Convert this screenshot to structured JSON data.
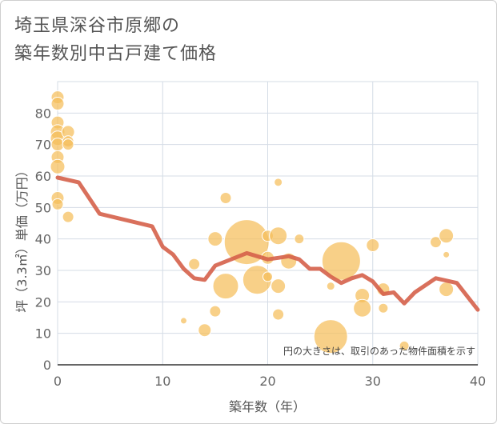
{
  "chart_data": {
    "type": "scatter",
    "title_lines": [
      "埼玉県深谷市原郷の",
      "築年数別中古戸建て価格"
    ],
    "xlabel": "築年数（年）",
    "ylabel": "坪（3.3㎡）単価（万円）",
    "xlim": [
      0,
      40
    ],
    "ylim": [
      0,
      90
    ],
    "x_ticks": [
      0,
      10,
      20,
      30,
      40
    ],
    "y_ticks": [
      0,
      10,
      20,
      30,
      40,
      50,
      60,
      70,
      80
    ],
    "note": "円の大きさは、取引のあった物件面積を示す",
    "bubble_color": "#f5be5a",
    "line_color": "#d5604a",
    "grid": true,
    "bubbles": [
      {
        "x": 0,
        "y": 85,
        "r": 8
      },
      {
        "x": 0,
        "y": 83,
        "r": 8
      },
      {
        "x": 0,
        "y": 77,
        "r": 8
      },
      {
        "x": 0,
        "y": 74,
        "r": 9
      },
      {
        "x": 0,
        "y": 72,
        "r": 9
      },
      {
        "x": 0,
        "y": 70,
        "r": 8
      },
      {
        "x": 0,
        "y": 66,
        "r": 8
      },
      {
        "x": 0,
        "y": 63,
        "r": 9
      },
      {
        "x": 0,
        "y": 53,
        "r": 8
      },
      {
        "x": 0,
        "y": 51,
        "r": 7
      },
      {
        "x": 1,
        "y": 74,
        "r": 8
      },
      {
        "x": 1,
        "y": 71,
        "r": 7
      },
      {
        "x": 1,
        "y": 70,
        "r": 7
      },
      {
        "x": 1,
        "y": 47,
        "r": 7
      },
      {
        "x": 12,
        "y": 14,
        "r": 4
      },
      {
        "x": 13,
        "y": 32,
        "r": 7
      },
      {
        "x": 14,
        "y": 11,
        "r": 8
      },
      {
        "x": 15,
        "y": 40,
        "r": 9
      },
      {
        "x": 15,
        "y": 17,
        "r": 7
      },
      {
        "x": 16,
        "y": 53,
        "r": 7
      },
      {
        "x": 16,
        "y": 25,
        "r": 16
      },
      {
        "x": 18,
        "y": 39,
        "r": 28
      },
      {
        "x": 19,
        "y": 27,
        "r": 18
      },
      {
        "x": 20,
        "y": 41,
        "r": 7
      },
      {
        "x": 20,
        "y": 34,
        "r": 8
      },
      {
        "x": 20,
        "y": 28,
        "r": 6
      },
      {
        "x": 21,
        "y": 58,
        "r": 5
      },
      {
        "x": 21,
        "y": 41,
        "r": 11
      },
      {
        "x": 21,
        "y": 25,
        "r": 9
      },
      {
        "x": 21,
        "y": 16,
        "r": 7
      },
      {
        "x": 22,
        "y": 33,
        "r": 10
      },
      {
        "x": 23,
        "y": 40,
        "r": 6
      },
      {
        "x": 26,
        "y": 25,
        "r": 5
      },
      {
        "x": 26,
        "y": 9,
        "r": 21
      },
      {
        "x": 27,
        "y": 33,
        "r": 24
      },
      {
        "x": 29,
        "y": 22,
        "r": 9
      },
      {
        "x": 29,
        "y": 18,
        "r": 11
      },
      {
        "x": 30,
        "y": 38,
        "r": 8
      },
      {
        "x": 31,
        "y": 24,
        "r": 8
      },
      {
        "x": 31,
        "y": 18,
        "r": 6
      },
      {
        "x": 33,
        "y": 6,
        "r": 6
      },
      {
        "x": 36,
        "y": 39,
        "r": 7
      },
      {
        "x": 37,
        "y": 41,
        "r": 9
      },
      {
        "x": 37,
        "y": 35,
        "r": 4
      },
      {
        "x": 37,
        "y": 24,
        "r": 9
      }
    ],
    "trend_line": [
      {
        "x": 0,
        "y": 59.5
      },
      {
        "x": 2,
        "y": 58
      },
      {
        "x": 4,
        "y": 48
      },
      {
        "x": 9,
        "y": 44
      },
      {
        "x": 10,
        "y": 37.5
      },
      {
        "x": 11,
        "y": 35
      },
      {
        "x": 12,
        "y": 30.5
      },
      {
        "x": 13,
        "y": 27.5
      },
      {
        "x": 14,
        "y": 27
      },
      {
        "x": 15,
        "y": 31.5
      },
      {
        "x": 18,
        "y": 35.5
      },
      {
        "x": 19,
        "y": 34.5
      },
      {
        "x": 20,
        "y": 33.5
      },
      {
        "x": 21,
        "y": 34
      },
      {
        "x": 22,
        "y": 34.5
      },
      {
        "x": 23,
        "y": 33.5
      },
      {
        "x": 24,
        "y": 30.5
      },
      {
        "x": 25,
        "y": 30.5
      },
      {
        "x": 26,
        "y": 28
      },
      {
        "x": 27,
        "y": 26
      },
      {
        "x": 28,
        "y": 27.5
      },
      {
        "x": 29,
        "y": 28.5
      },
      {
        "x": 30,
        "y": 26.5
      },
      {
        "x": 31,
        "y": 22.5
      },
      {
        "x": 32,
        "y": 23
      },
      {
        "x": 33,
        "y": 19.5
      },
      {
        "x": 34,
        "y": 23
      },
      {
        "x": 36,
        "y": 27.5
      },
      {
        "x": 38,
        "y": 26
      },
      {
        "x": 40,
        "y": 17.5
      }
    ]
  }
}
